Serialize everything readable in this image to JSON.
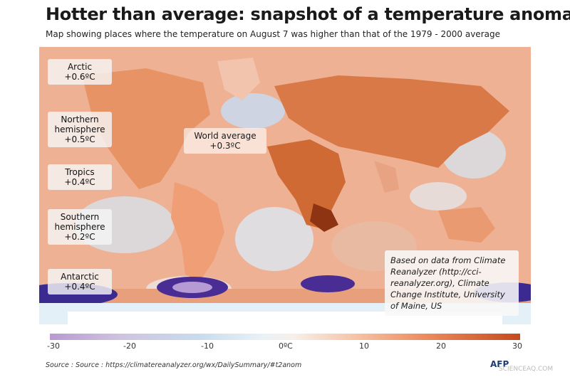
{
  "title": "Hotter than average: snapshot of a temperature anomaly",
  "subtitle": "Map showing places where the temperature on August 7 was higher than that of the 1979 - 2000 average",
  "regions": [
    {
      "name": "Arctic",
      "value": "+0.6ºC"
    },
    {
      "name": "Northern hemisphere",
      "value": "+0.5ºC"
    },
    {
      "name": "Tropics",
      "value": "+0.4ºC"
    },
    {
      "name": "Southern hemisphere",
      "value": "+0.2ºC"
    },
    {
      "name": "Antarctic",
      "value": "+0.4ºC"
    }
  ],
  "world_average": {
    "name": "World average",
    "value": "+0.3ºC"
  },
  "note": "Based on data from Climate Reanalyzer (http://cci-reanalyzer.org), Climate Change Institute, University of Maine, US",
  "scale": {
    "ticks": [
      "-30",
      "-20",
      "-10",
      "0ºC",
      "10",
      "20",
      "30"
    ],
    "min": -30,
    "max": 30,
    "colors": {
      "cold": "#b79ad0",
      "neutral": "#f5f3f1",
      "hot": "#c54a1d"
    }
  },
  "source": "Source : Source : https://climatereanalyzer.org/wx/DailySummary/#t2anom",
  "credit": "AFP",
  "watermark": "SCIENCEAQ.COM"
}
